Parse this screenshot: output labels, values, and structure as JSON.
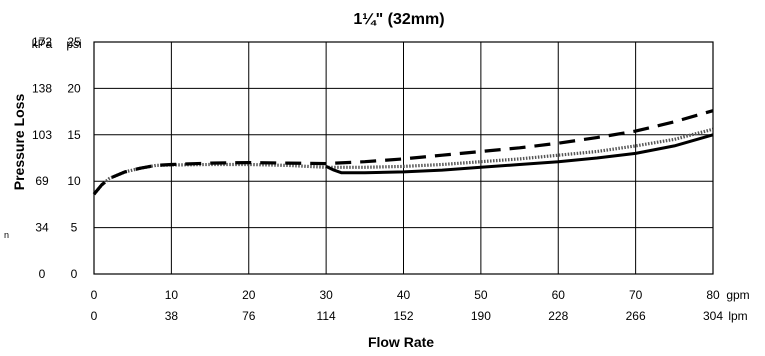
{
  "chart_data": {
    "type": "line",
    "title": "1¼\" (32mm)",
    "xlabel": "Flow Rate",
    "ylabel": "Pressure Loss",
    "unit_labels": {
      "y_primary": "kPa",
      "y_secondary": "psi",
      "x_primary": "gpm",
      "x_secondary": "lpm"
    },
    "stray_label": "n",
    "xlim": [
      0,
      80
    ],
    "ylim": [
      0,
      25
    ],
    "grid": true,
    "x_ticks": [
      {
        "gpm": "0",
        "lpm": "0"
      },
      {
        "gpm": "10",
        "lpm": "38"
      },
      {
        "gpm": "20",
        "lpm": "76"
      },
      {
        "gpm": "30",
        "lpm": "114"
      },
      {
        "gpm": "40",
        "lpm": "152"
      },
      {
        "gpm": "50",
        "lpm": "190"
      },
      {
        "gpm": "60",
        "lpm": "228"
      },
      {
        "gpm": "70",
        "lpm": "266"
      },
      {
        "gpm": "80",
        "lpm": "304"
      }
    ],
    "y_ticks": [
      {
        "psi": "0",
        "kpa": "0"
      },
      {
        "psi": "5",
        "kpa": "34"
      },
      {
        "psi": "10",
        "kpa": "69"
      },
      {
        "psi": "15",
        "kpa": "103"
      },
      {
        "psi": "20",
        "kpa": "138"
      },
      {
        "psi": "25",
        "kpa": "172"
      }
    ],
    "series": [
      {
        "style": "dashed",
        "x": [
          0,
          1,
          2,
          4,
          6,
          8,
          10,
          15,
          20,
          25,
          30,
          35,
          40,
          45,
          50,
          55,
          60,
          65,
          70,
          75,
          80
        ],
        "y": [
          8.6,
          9.6,
          10.3,
          11.0,
          11.4,
          11.7,
          11.8,
          11.95,
          12.0,
          11.95,
          11.9,
          12.1,
          12.4,
          12.8,
          13.2,
          13.6,
          14.1,
          14.7,
          15.4,
          16.4,
          17.6
        ]
      },
      {
        "style": "dotted",
        "x": [
          0,
          1,
          2,
          4,
          6,
          8,
          10,
          15,
          20,
          25,
          30,
          35,
          40,
          45,
          50,
          55,
          60,
          65,
          70,
          75,
          80
        ],
        "y": [
          8.6,
          9.6,
          10.3,
          11.0,
          11.4,
          11.7,
          11.75,
          11.8,
          11.8,
          11.7,
          11.5,
          11.5,
          11.6,
          11.8,
          12.1,
          12.4,
          12.8,
          13.2,
          13.8,
          14.5,
          15.6
        ]
      },
      {
        "style": "solid",
        "x": [
          30,
          31,
          32,
          35,
          40,
          45,
          50,
          55,
          60,
          65,
          70,
          75,
          80
        ],
        "y": [
          11.6,
          11.2,
          10.9,
          10.9,
          11.0,
          11.2,
          11.5,
          11.8,
          12.1,
          12.5,
          13.0,
          13.8,
          15.0
        ]
      }
    ]
  }
}
